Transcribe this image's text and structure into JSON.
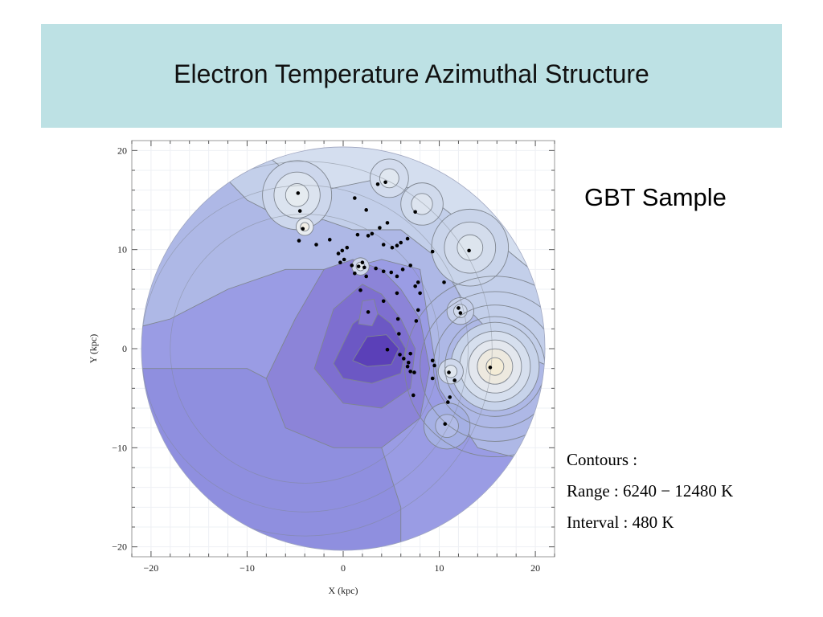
{
  "slide": {
    "title": "Electron Temperature Azimuthal Structure",
    "side_label": "GBT Sample",
    "contours_heading": "Contours :",
    "contours_range": "Range : 6240 − 12480 K",
    "contours_interval": "Interval : 480 K"
  },
  "chart_data": {
    "type": "contour",
    "xlabel": "X (kpc)",
    "ylabel": "Y (kpc)",
    "xlim": [
      -22,
      22
    ],
    "ylim": [
      -21,
      21
    ],
    "xticks": [
      -20,
      -10,
      0,
      10,
      20
    ],
    "yticks": [
      -20,
      -10,
      0,
      10,
      20
    ],
    "tick_labels_x": [
      "−20",
      "−10",
      "0",
      "10",
      "20"
    ],
    "tick_labels_y": [
      "−20",
      "−10",
      "0",
      "10",
      "20"
    ],
    "disk_radius_kpc": 21,
    "contour_range_K": [
      6240,
      12480
    ],
    "contour_interval_K": 480,
    "colors": {
      "low": "#5b40b8",
      "mid": "#9a9ce4",
      "high": "#dfe8f0",
      "peak": "#f4ecd6",
      "contour_line": "#7f8690",
      "point": "#000000"
    },
    "hii_regions": [
      {
        "x": -4.7,
        "y": 15.7
      },
      {
        "x": -4.5,
        "y": 13.9
      },
      {
        "x": -4.2,
        "y": 12.1
      },
      {
        "x": -4.6,
        "y": 10.9
      },
      {
        "x": -2.8,
        "y": 10.5
      },
      {
        "x": -1.4,
        "y": 11.0
      },
      {
        "x": 1.2,
        "y": 15.2
      },
      {
        "x": 2.4,
        "y": 14.0
      },
      {
        "x": 3.6,
        "y": 16.6
      },
      {
        "x": 4.4,
        "y": 16.8
      },
      {
        "x": 7.5,
        "y": 13.8
      },
      {
        "x": 1.5,
        "y": 11.5
      },
      {
        "x": 2.6,
        "y": 11.4
      },
      {
        "x": 3.0,
        "y": 11.6
      },
      {
        "x": 3.8,
        "y": 12.2
      },
      {
        "x": 4.6,
        "y": 12.7
      },
      {
        "x": 4.2,
        "y": 10.5
      },
      {
        "x": 5.1,
        "y": 10.2
      },
      {
        "x": 5.6,
        "y": 10.4
      },
      {
        "x": 6.0,
        "y": 10.7
      },
      {
        "x": 6.7,
        "y": 11.1
      },
      {
        "x": 9.3,
        "y": 9.8
      },
      {
        "x": 13.1,
        "y": 9.9
      },
      {
        "x": -0.5,
        "y": 9.6
      },
      {
        "x": -0.1,
        "y": 9.9
      },
      {
        "x": 0.1,
        "y": 9.0
      },
      {
        "x": -0.3,
        "y": 8.7
      },
      {
        "x": 0.9,
        "y": 8.4
      },
      {
        "x": 1.6,
        "y": 8.3
      },
      {
        "x": 2.2,
        "y": 8.2
      },
      {
        "x": 1.2,
        "y": 7.6
      },
      {
        "x": 2.4,
        "y": 7.3
      },
      {
        "x": 3.4,
        "y": 8.1
      },
      {
        "x": 4.2,
        "y": 7.8
      },
      {
        "x": 5.0,
        "y": 7.7
      },
      {
        "x": 5.6,
        "y": 7.3
      },
      {
        "x": 6.2,
        "y": 8.0
      },
      {
        "x": 7.0,
        "y": 8.4
      },
      {
        "x": 7.8,
        "y": 6.7
      },
      {
        "x": 7.5,
        "y": 6.3
      },
      {
        "x": 10.5,
        "y": 6.7
      },
      {
        "x": 1.8,
        "y": 5.9
      },
      {
        "x": 5.6,
        "y": 5.6
      },
      {
        "x": 8.0,
        "y": 5.6
      },
      {
        "x": 4.2,
        "y": 4.8
      },
      {
        "x": 2.6,
        "y": 3.7
      },
      {
        "x": 7.8,
        "y": 3.9
      },
      {
        "x": 7.6,
        "y": 2.8
      },
      {
        "x": 5.7,
        "y": 3.0
      },
      {
        "x": 5.8,
        "y": 1.5
      },
      {
        "x": 12.0,
        "y": 4.1
      },
      {
        "x": 12.2,
        "y": 3.6
      },
      {
        "x": 4.6,
        "y": -0.1
      },
      {
        "x": 5.9,
        "y": -0.6
      },
      {
        "x": 6.3,
        "y": -1.0
      },
      {
        "x": 7.0,
        "y": -0.5
      },
      {
        "x": 6.7,
        "y": -1.8
      },
      {
        "x": 7.0,
        "y": -2.3
      },
      {
        "x": 7.4,
        "y": -2.4
      },
      {
        "x": 9.3,
        "y": -1.2
      },
      {
        "x": 9.5,
        "y": -1.7
      },
      {
        "x": 9.3,
        "y": -3.0
      },
      {
        "x": 11.0,
        "y": -2.4
      },
      {
        "x": 11.6,
        "y": -3.2
      },
      {
        "x": 15.3,
        "y": -1.9
      },
      {
        "x": 7.3,
        "y": -4.7
      },
      {
        "x": 11.1,
        "y": -4.9
      },
      {
        "x": 10.9,
        "y": -5.4
      },
      {
        "x": 10.6,
        "y": -7.6
      },
      {
        "x": 6.8,
        "y": -1.4
      },
      {
        "x": 2.0,
        "y": 8.7
      },
      {
        "x": 0.4,
        "y": 10.2
      }
    ]
  }
}
